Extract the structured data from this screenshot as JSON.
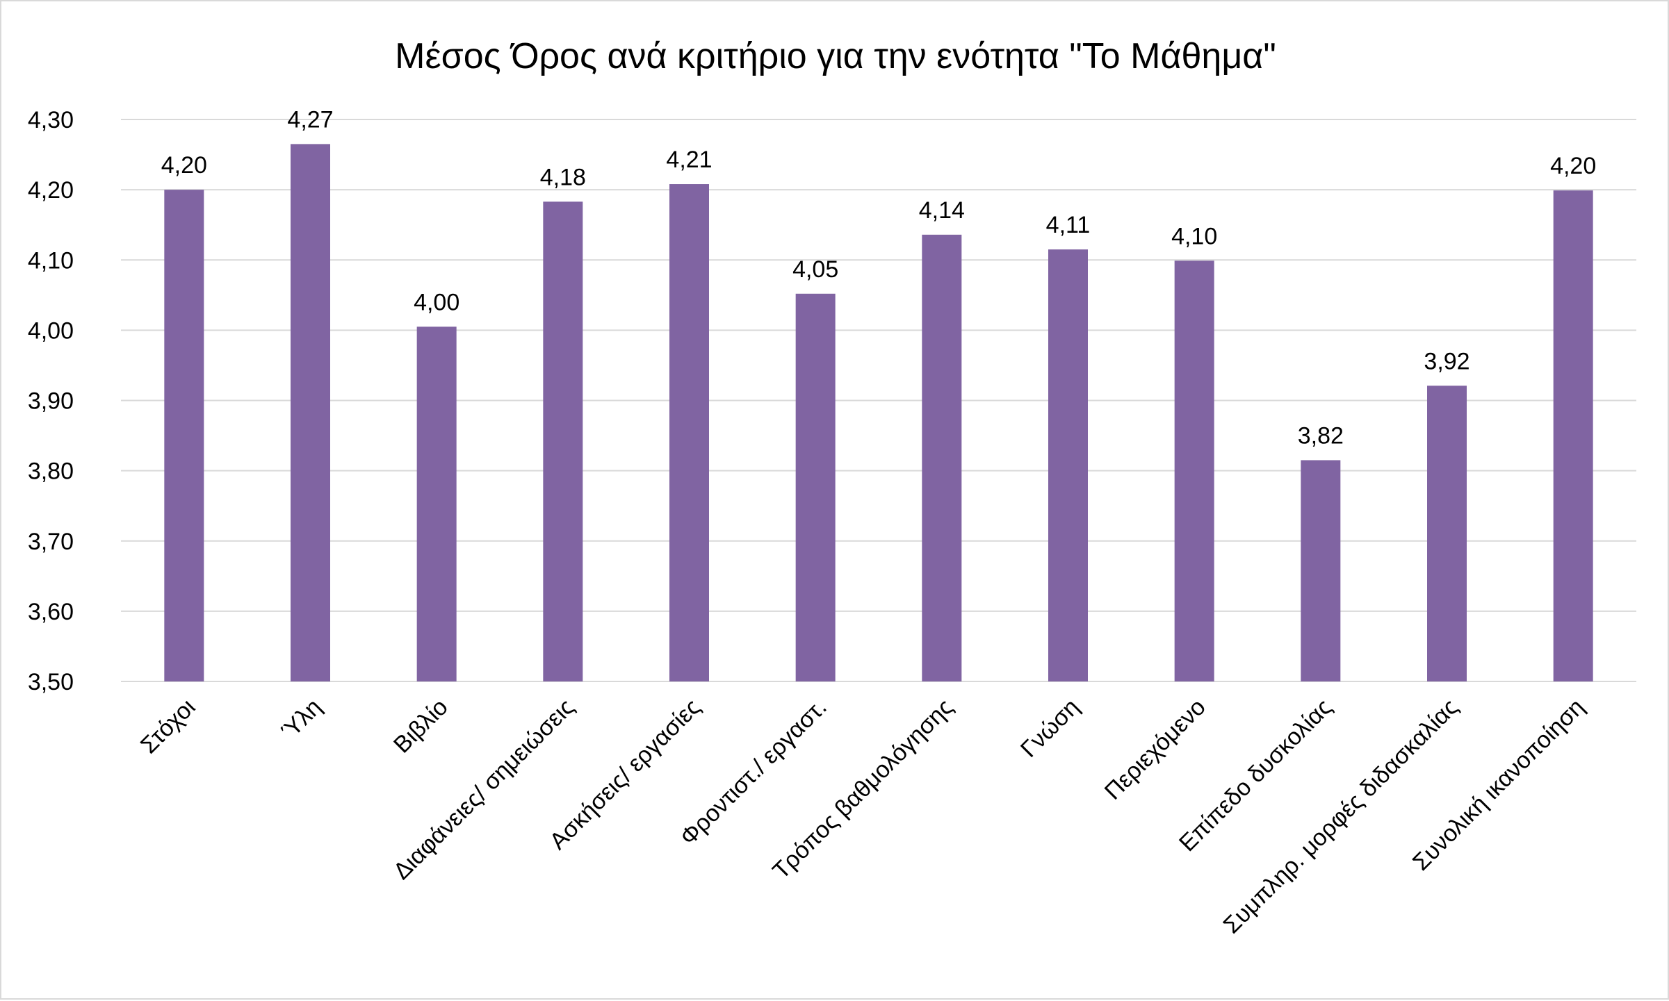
{
  "chart_data": {
    "type": "bar",
    "title": "Μέσος  Όρος ανά κριτήριο για την ενότητα \"Το Μάθημα\"",
    "xlabel": "",
    "ylabel": "",
    "categories": [
      "Στόχοι",
      "Ύλη",
      "Βιβλίο",
      "Διαφάνειες/ σημειώσεις",
      "Ασκήσεις/ εργασίες",
      "Φροντιστ./ εργαστ.",
      "Τρόπος βαθμολόγησης",
      "Γνώση",
      "Περιεχόμενο",
      "Επίπεδο δυσκολίας",
      "Συμπληρ. μορφές διδασκαλίας",
      "Συνολική ικανοποίηση"
    ],
    "values": [
      4.2,
      4.265,
      4.005,
      4.183,
      4.208,
      4.052,
      4.136,
      4.115,
      4.099,
      3.815,
      3.921,
      4.199
    ],
    "data_labels": [
      "4,20",
      "4,27",
      "4,00",
      "4,18",
      "4,21",
      "4,05",
      "4,14",
      "4,11",
      "4,10",
      "3,82",
      "3,92",
      "4,20"
    ],
    "ylim": [
      3.5,
      4.3
    ],
    "yticks": [
      3.5,
      3.6,
      3.7,
      3.8,
      3.9,
      4.0,
      4.1,
      4.2,
      4.3
    ],
    "ytick_labels": [
      "3,50",
      "3,60",
      "3,70",
      "3,80",
      "3,90",
      "4,00",
      "4,10",
      "4,20",
      "4,30"
    ],
    "grid": true,
    "legend": "none",
    "colors": {
      "bar": "#8064a2",
      "grid": "#d9d9d9",
      "text": "#000000"
    }
  }
}
